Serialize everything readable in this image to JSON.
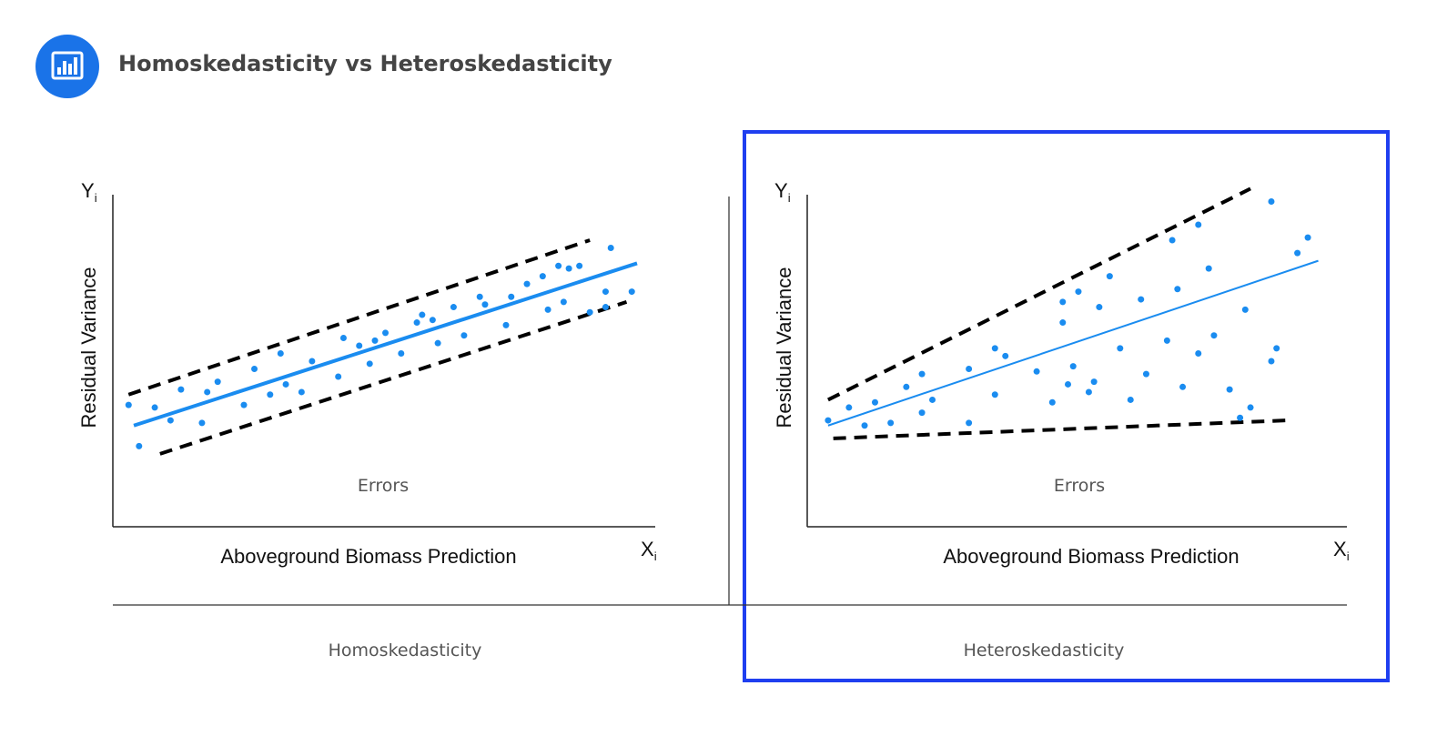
{
  "page": {
    "title": "Homoskedasticity vs Heteroskedasticity",
    "icon": "bar-chart-icon",
    "colors": {
      "accent": "#1a8cf0",
      "brand_icon": "#1a73e8",
      "highlight_frame": "#1f3ff0",
      "dashed": "#000000"
    }
  },
  "chart_data": [
    {
      "type": "scatter",
      "title": "",
      "caption": "Homoskedasticity",
      "xlabel": "Aboveground Biomass Prediction",
      "ylabel": "Residual Variance",
      "x_axis_symbol": "X",
      "x_axis_subscript": "i",
      "y_axis_symbol": "Y",
      "y_axis_subscript": "i",
      "annotation": "Errors",
      "regression_line": [
        [
          0.04,
          0.22
        ],
        [
          1.0,
          0.85
        ]
      ],
      "bounds": [
        {
          "name": "upper",
          "points": [
            [
              0.03,
              0.34
            ],
            [
              0.91,
              0.94
            ]
          ]
        },
        {
          "name": "lower",
          "points": [
            [
              0.09,
              0.11
            ],
            [
              0.98,
              0.7
            ]
          ]
        }
      ],
      "points": [
        [
          0.03,
          0.3
        ],
        [
          0.05,
          0.14
        ],
        [
          0.08,
          0.29
        ],
        [
          0.11,
          0.24
        ],
        [
          0.13,
          0.36
        ],
        [
          0.17,
          0.23
        ],
        [
          0.18,
          0.35
        ],
        [
          0.2,
          0.39
        ],
        [
          0.25,
          0.3
        ],
        [
          0.27,
          0.44
        ],
        [
          0.3,
          0.34
        ],
        [
          0.32,
          0.5
        ],
        [
          0.33,
          0.38
        ],
        [
          0.36,
          0.35
        ],
        [
          0.38,
          0.47
        ],
        [
          0.43,
          0.41
        ],
        [
          0.44,
          0.56
        ],
        [
          0.47,
          0.53
        ],
        [
          0.49,
          0.46
        ],
        [
          0.5,
          0.55
        ],
        [
          0.52,
          0.58
        ],
        [
          0.55,
          0.5
        ],
        [
          0.58,
          0.62
        ],
        [
          0.59,
          0.65
        ],
        [
          0.61,
          0.63
        ],
        [
          0.62,
          0.54
        ],
        [
          0.65,
          0.68
        ],
        [
          0.67,
          0.57
        ],
        [
          0.7,
          0.72
        ],
        [
          0.71,
          0.69
        ],
        [
          0.75,
          0.61
        ],
        [
          0.76,
          0.72
        ],
        [
          0.79,
          0.77
        ],
        [
          0.82,
          0.8
        ],
        [
          0.83,
          0.67
        ],
        [
          0.86,
          0.7
        ],
        [
          0.87,
          0.83
        ],
        [
          0.85,
          0.84
        ],
        [
          0.89,
          0.84
        ],
        [
          0.91,
          0.66
        ],
        [
          0.94,
          0.68
        ],
        [
          0.94,
          0.74
        ],
        [
          0.95,
          0.91
        ],
        [
          0.99,
          0.74
        ]
      ]
    },
    {
      "type": "scatter",
      "title": "",
      "caption": "Heteroskedasticity",
      "xlabel": "Aboveground Biomass Prediction",
      "ylabel": "Residual Variance",
      "x_axis_symbol": "X",
      "x_axis_subscript": "i",
      "y_axis_symbol": "Y",
      "y_axis_subscript": "i",
      "annotation": "Errors",
      "regression_line": [
        [
          0.04,
          0.22
        ],
        [
          0.98,
          0.86
        ]
      ],
      "bounds": [
        {
          "name": "upper",
          "points": [
            [
              0.04,
              0.32
            ],
            [
              0.85,
              1.14
            ]
          ]
        },
        {
          "name": "lower",
          "points": [
            [
              0.05,
              0.17
            ],
            [
              0.92,
              0.24
            ]
          ]
        }
      ],
      "points": [
        [
          0.04,
          0.24
        ],
        [
          0.08,
          0.29
        ],
        [
          0.11,
          0.22
        ],
        [
          0.13,
          0.31
        ],
        [
          0.16,
          0.23
        ],
        [
          0.19,
          0.37
        ],
        [
          0.22,
          0.27
        ],
        [
          0.22,
          0.42
        ],
        [
          0.24,
          0.32
        ],
        [
          0.31,
          0.23
        ],
        [
          0.31,
          0.44
        ],
        [
          0.36,
          0.34
        ],
        [
          0.36,
          0.52
        ],
        [
          0.38,
          0.49
        ],
        [
          0.44,
          0.43
        ],
        [
          0.47,
          0.31
        ],
        [
          0.49,
          0.62
        ],
        [
          0.49,
          0.7
        ],
        [
          0.5,
          0.38
        ],
        [
          0.51,
          0.45
        ],
        [
          0.52,
          0.74
        ],
        [
          0.54,
          0.35
        ],
        [
          0.55,
          0.39
        ],
        [
          0.56,
          0.68
        ],
        [
          0.58,
          0.8
        ],
        [
          0.6,
          0.52
        ],
        [
          0.62,
          0.32
        ],
        [
          0.64,
          0.71
        ],
        [
          0.65,
          0.42
        ],
        [
          0.69,
          0.55
        ],
        [
          0.7,
          0.94
        ],
        [
          0.71,
          0.75
        ],
        [
          0.72,
          0.37
        ],
        [
          0.75,
          0.5
        ],
        [
          0.75,
          1.0
        ],
        [
          0.77,
          0.83
        ],
        [
          0.78,
          0.57
        ],
        [
          0.81,
          0.36
        ],
        [
          0.83,
          0.25
        ],
        [
          0.84,
          0.67
        ],
        [
          0.85,
          0.29
        ],
        [
          0.89,
          1.09
        ],
        [
          0.9,
          0.52
        ],
        [
          0.89,
          0.47
        ],
        [
          0.94,
          0.89
        ],
        [
          0.96,
          0.95
        ]
      ]
    }
  ]
}
